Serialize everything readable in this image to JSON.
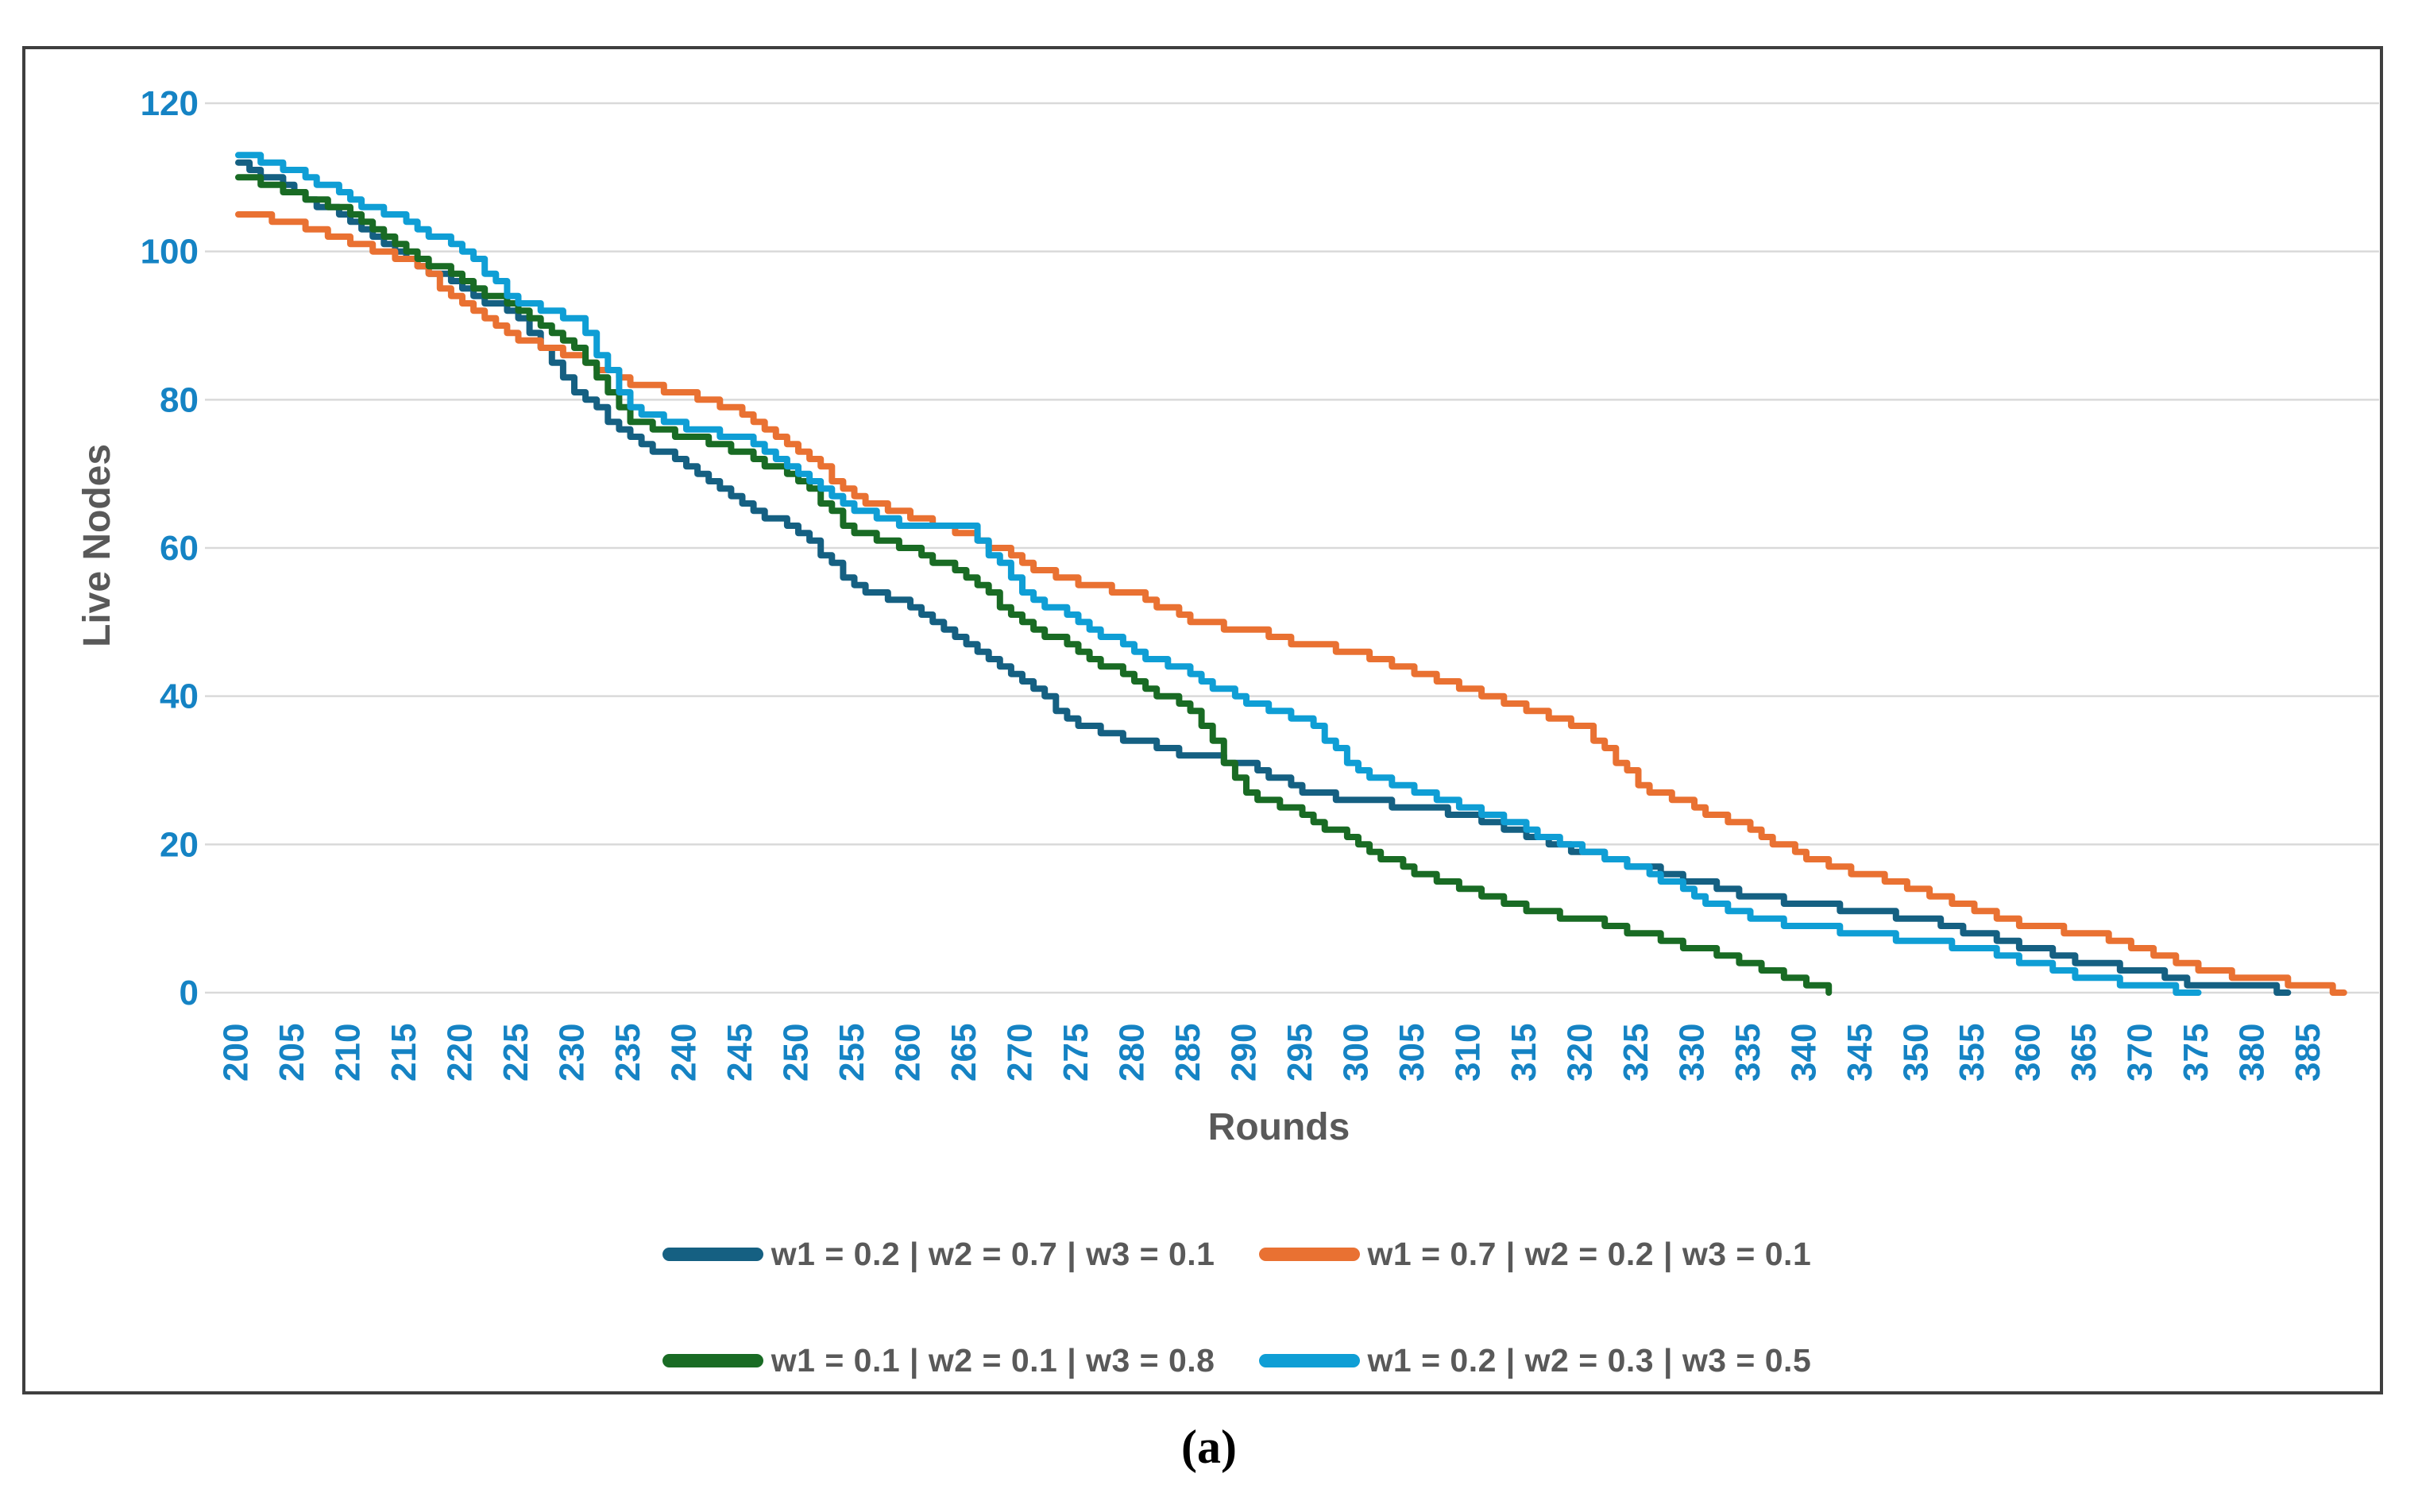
{
  "figure": {
    "caption": "(a)",
    "x_axis_title": "Rounds",
    "y_axis_title": "Live Nodes"
  },
  "colors": {
    "tick_label": "#1583C4",
    "axis_title": "#595959",
    "legend_text": "#595959",
    "gridline": "#D9D9D9",
    "figure_border": "#3F3F3F",
    "background": "#FFFFFF"
  },
  "chart_data": {
    "type": "line",
    "title": "",
    "xlabel": "Rounds",
    "ylabel": "Live Nodes",
    "xlim": [
      200,
      390
    ],
    "ylim": [
      0,
      120
    ],
    "x_ticks": [
      200,
      205,
      210,
      215,
      220,
      225,
      230,
      235,
      240,
      245,
      250,
      255,
      260,
      265,
      270,
      275,
      280,
      285,
      290,
      295,
      300,
      305,
      310,
      315,
      320,
      325,
      330,
      335,
      340,
      345,
      350,
      355,
      360,
      365,
      370,
      375,
      380,
      385
    ],
    "y_ticks": [
      0,
      20,
      40,
      60,
      80,
      100,
      120
    ],
    "grid": true,
    "legend_position": "bottom",
    "line_style": "stepwise",
    "series": [
      {
        "name": "w1 = 0.2 | w2 = 0.7 | w3 = 0.1",
        "color": "#156082",
        "x": [
          200,
          205,
          210,
          215,
          220,
          225,
          230,
          235,
          240,
          245,
          250,
          255,
          260,
          265,
          270,
          275,
          280,
          285,
          290,
          295,
          300,
          305,
          310,
          315,
          320,
          325,
          330,
          335,
          340,
          345,
          350,
          355,
          360,
          365,
          370,
          375,
          380,
          383
        ],
        "y": [
          112,
          108,
          104,
          99,
          95,
          91,
          81,
          75,
          71,
          66,
          62,
          55,
          52,
          47,
          42,
          36,
          34,
          32,
          31,
          27,
          26,
          25,
          24,
          21,
          19,
          17,
          15,
          13,
          12,
          11,
          10,
          8,
          6,
          4,
          3,
          1,
          1,
          0
        ]
      },
      {
        "name": "w1 = 0.7 | w2 = 0.2 | w3 = 0.1",
        "color": "#E97132",
        "x": [
          200,
          205,
          210,
          215,
          220,
          225,
          230,
          235,
          240,
          245,
          250,
          255,
          260,
          265,
          270,
          275,
          280,
          285,
          290,
          295,
          300,
          305,
          310,
          315,
          320,
          325,
          330,
          335,
          340,
          345,
          350,
          355,
          360,
          365,
          370,
          375,
          380,
          385,
          388
        ],
        "y": [
          105,
          104,
          101,
          99,
          93,
          88,
          86,
          82,
          81,
          78,
          73,
          67,
          64,
          62,
          58,
          55,
          54,
          50,
          49,
          47,
          46,
          43,
          41,
          38,
          36,
          28,
          25,
          22,
          18,
          16,
          14,
          11,
          9,
          8,
          6,
          3,
          2,
          1,
          0
        ]
      },
      {
        "name": "w1 = 0.1 | w2 = 0.1 | w3 = 0.8",
        "color": "#196B24",
        "x": [
          200,
          205,
          210,
          215,
          220,
          225,
          230,
          235,
          240,
          245,
          250,
          255,
          260,
          265,
          270,
          275,
          280,
          285,
          290,
          295,
          300,
          305,
          310,
          315,
          320,
          325,
          330,
          335,
          340,
          342
        ],
        "y": [
          110,
          108,
          105,
          100,
          96,
          92,
          87,
          77,
          75,
          73,
          69,
          62,
          60,
          56,
          50,
          46,
          42,
          38,
          27,
          24,
          20,
          16,
          14,
          11,
          10,
          8,
          6,
          4,
          1,
          0
        ]
      },
      {
        "name": "w1 = 0.2 | w2 = 0.3 | w3 = 0.5",
        "color": "#0F9ED5",
        "x": [
          200,
          205,
          210,
          215,
          220,
          225,
          230,
          235,
          240,
          245,
          250,
          255,
          260,
          265,
          270,
          275,
          280,
          285,
          290,
          295,
          300,
          305,
          310,
          315,
          320,
          325,
          330,
          335,
          340,
          345,
          350,
          355,
          360,
          365,
          370,
          375
        ],
        "y": [
          113,
          111,
          107,
          104,
          100,
          93,
          91,
          79,
          76,
          75,
          70,
          65,
          63,
          63,
          54,
          50,
          46,
          43,
          39,
          37,
          30,
          27,
          25,
          22,
          19,
          17,
          13,
          10,
          9,
          8,
          7,
          6,
          4,
          2,
          1,
          0
        ]
      }
    ]
  }
}
